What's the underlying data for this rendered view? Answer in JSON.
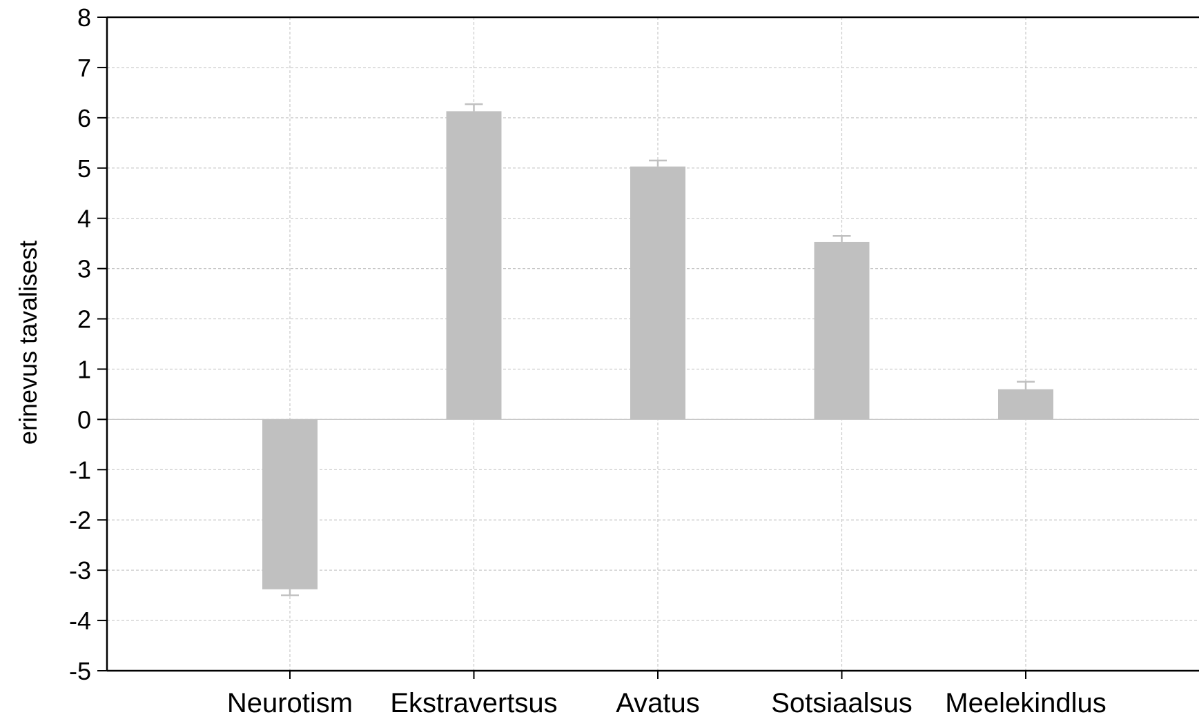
{
  "chart_data": {
    "type": "bar",
    "categories": [
      "Neurotism",
      "Ekstravertsus",
      "Avatus",
      "Sotsiaalsus",
      "Meelekindlus"
    ],
    "values": [
      -3.38,
      6.13,
      5.03,
      3.53,
      0.6
    ],
    "error_bars": [
      0.12,
      0.14,
      0.12,
      0.12,
      0.15
    ],
    "ylabel": "erinevus tavalisest",
    "xlabel": "",
    "ylim": [
      -5,
      8
    ],
    "yticks": [
      8,
      7,
      6,
      5,
      4,
      3,
      2,
      1,
      0,
      -1,
      -2,
      -3,
      -4,
      -5
    ],
    "ytick_labels": [
      "8",
      "7",
      "6",
      "5",
      "4",
      "3",
      "2",
      "1",
      "0",
      "-1",
      "-2",
      "-3",
      "-4",
      "-5"
    ],
    "grid": true,
    "colors": {
      "bar": "#c0c0c0",
      "grid": "#c8c8c8",
      "axis": "#000000"
    }
  }
}
